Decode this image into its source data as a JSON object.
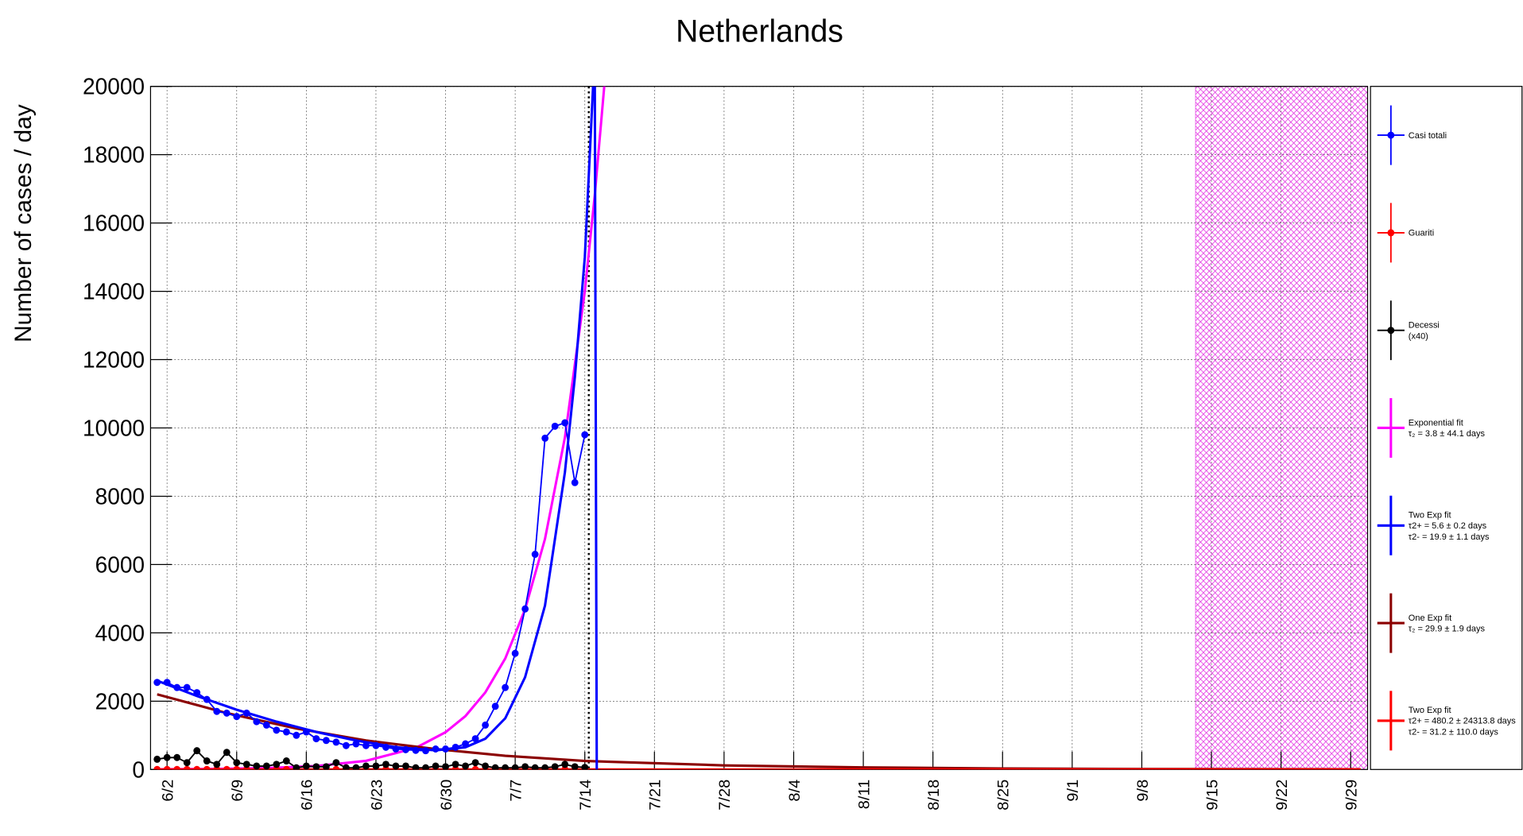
{
  "chart_data": {
    "type": "line",
    "title": "Netherlands",
    "y_label": "Number of cases / day",
    "xlim": [
      -1.66,
      120.7
    ],
    "xticks": [
      {
        "value": 0,
        "label": "6/2"
      },
      {
        "value": 7,
        "label": "6/9"
      },
      {
        "value": 14,
        "label": "6/16"
      },
      {
        "value": 21,
        "label": "6/23"
      },
      {
        "value": 28,
        "label": "6/30"
      },
      {
        "value": 35,
        "label": "7/7"
      },
      {
        "value": 42,
        "label": "7/14"
      },
      {
        "value": 49,
        "label": "7/21"
      },
      {
        "value": 56,
        "label": "7/28"
      },
      {
        "value": 63,
        "label": "8/4"
      },
      {
        "value": 70,
        "label": "8/11"
      },
      {
        "value": 77,
        "label": "8/18"
      },
      {
        "value": 84,
        "label": "8/25"
      },
      {
        "value": 91,
        "label": "9/1"
      },
      {
        "value": 98,
        "label": "9/8"
      },
      {
        "value": 105,
        "label": "9/15"
      },
      {
        "value": 112,
        "label": "9/22"
      },
      {
        "value": 119,
        "label": "9/29"
      }
    ],
    "ylim": [
      0,
      20000
    ],
    "yticks": [
      0,
      2000,
      4000,
      6000,
      8000,
      10000,
      12000,
      14000,
      16000,
      18000,
      20000
    ],
    "grid": true,
    "vline": 42.4,
    "shaded_band": [
      103.4,
      120.7
    ],
    "shade_color": "#e020e0",
    "x": [
      -1,
      0,
      1,
      2,
      3,
      4,
      5,
      6,
      7,
      8,
      9,
      10,
      11,
      12,
      13,
      14,
      15,
      16,
      17,
      18,
      19,
      20,
      21,
      22,
      23,
      24,
      25,
      26,
      27,
      28,
      29,
      30,
      31,
      32,
      33,
      34,
      35,
      36,
      37,
      38,
      39,
      40,
      41,
      42
    ],
    "series": [
      {
        "name": "Casi totali",
        "color": "#0000ff",
        "marker": true,
        "values": [
          2550,
          2550,
          2400,
          2400,
          2250,
          2050,
          1700,
          1650,
          1550,
          1650,
          1400,
          1300,
          1150,
          1100,
          1000,
          1100,
          900,
          850,
          800,
          700,
          750,
          700,
          700,
          650,
          600,
          580,
          560,
          550,
          600,
          600,
          650,
          750,
          900,
          1300,
          1850,
          2400,
          3400,
          4700,
          6300,
          9700,
          10050,
          10150,
          8400,
          9800
        ]
      },
      {
        "name": "Guariti",
        "color": "#ff0000",
        "marker": true,
        "values": [
          0,
          0,
          0,
          0,
          0,
          0,
          0,
          0,
          0,
          0,
          0,
          0,
          0,
          0,
          0,
          0,
          0,
          0,
          0,
          0,
          0,
          0,
          0,
          0,
          0,
          0,
          0,
          0,
          0,
          0,
          0,
          0,
          0,
          0,
          0,
          0,
          0,
          0,
          0,
          0,
          0,
          0,
          0,
          0
        ]
      },
      {
        "name": "Decessi",
        "note": "(x40)",
        "color": "#000000",
        "marker": true,
        "values": [
          300,
          350,
          350,
          200,
          550,
          250,
          150,
          500,
          200,
          150,
          100,
          100,
          150,
          250,
          50,
          100,
          80,
          80,
          200,
          50,
          50,
          100,
          100,
          150,
          100,
          100,
          50,
          50,
          100,
          80,
          150,
          100,
          200,
          100,
          50,
          50,
          50,
          80,
          50,
          50,
          80,
          150,
          80,
          60
        ]
      },
      {
        "name": "Exponential fit",
        "lines": [
          "τ₂ = 3.8  ± 44.1 days"
        ],
        "color": "#ff00ff",
        "marker": false,
        "x": [
          -1,
          5,
          10,
          15,
          20,
          25,
          28,
          30,
          32,
          34,
          36,
          38,
          40,
          42,
          43,
          44
        ],
        "values": [
          6,
          17,
          41,
          102,
          252,
          632,
          1090,
          1565,
          2260,
          3250,
          4690,
          6750,
          9720,
          14000,
          16800,
          20160
        ]
      },
      {
        "name": "Two Exp fit",
        "lines": [
          "τ2+ = 5.6 ± 0.2 days",
          "τ2- = 19.9 ± 1.1 days"
        ],
        "color": "#0000ff",
        "marker": false,
        "x": [
          -1,
          3,
          7,
          11,
          15,
          19,
          23,
          27,
          30,
          32,
          34,
          36,
          38,
          40,
          41,
          42,
          43,
          43.2
        ],
        "values": [
          2600,
          2150,
          1750,
          1400,
          1100,
          850,
          650,
          560,
          650,
          900,
          1500,
          2700,
          4800,
          8700,
          11500,
          15000,
          21000,
          0
        ]
      },
      {
        "name": "One Exp fit",
        "lines": [
          "τ₂ = 29.9  ± 1.9 days"
        ],
        "color": "#8b0000",
        "marker": false,
        "x": [
          -1,
          6,
          13,
          20,
          27,
          34,
          42,
          56,
          70,
          84,
          98,
          120
        ],
        "values": [
          2200,
          1650,
          1200,
          850,
          600,
          400,
          250,
          120,
          60,
          30,
          15,
          5
        ]
      },
      {
        "name": "Two Exp fit",
        "lines": [
          "τ2+ = 480.2 ± 24313.8 days",
          "τ2- = 31.2 ± 110.0 days"
        ],
        "color": "#ff0000",
        "marker": false,
        "x": [
          -1,
          120
        ],
        "values": [
          0,
          0
        ]
      }
    ]
  }
}
